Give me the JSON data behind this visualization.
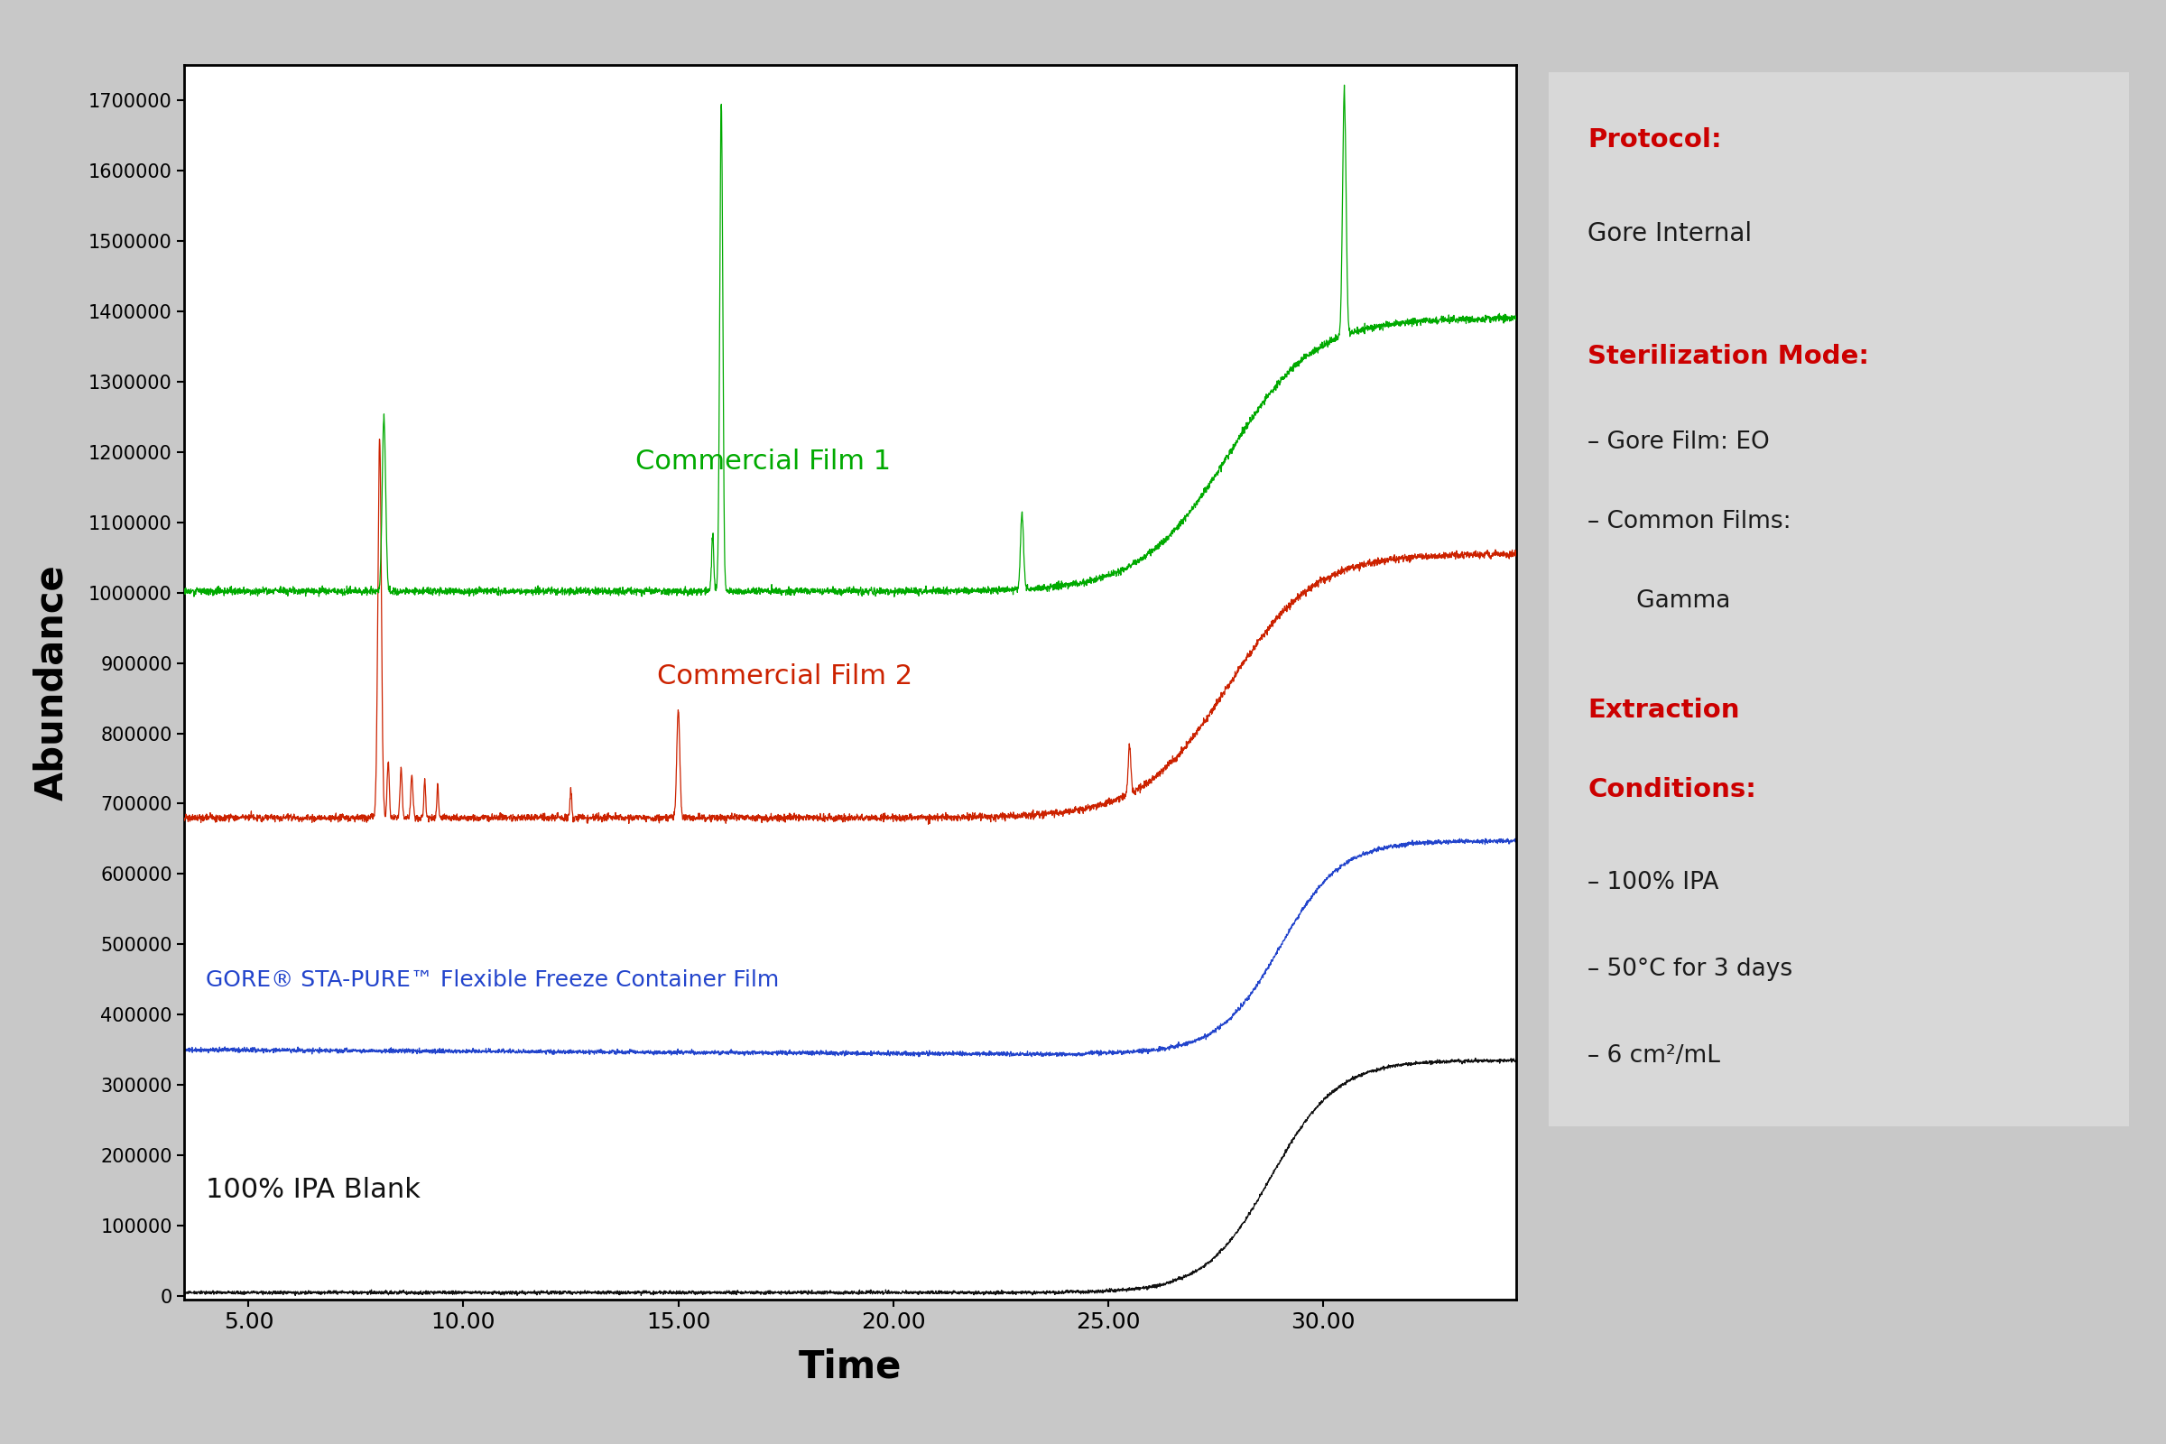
{
  "title": "",
  "xlabel": "Time",
  "ylabel": "Abundance",
  "xlim": [
    3.5,
    34.5
  ],
  "ylim": [
    -5000,
    1750000
  ],
  "yticks": [
    0,
    100000,
    200000,
    300000,
    400000,
    500000,
    600000,
    700000,
    800000,
    900000,
    1000000,
    1100000,
    1200000,
    1300000,
    1400000,
    1500000,
    1600000,
    1700000
  ],
  "xticks": [
    5.0,
    10.0,
    15.0,
    20.0,
    25.0,
    30.0
  ],
  "xtick_labels": [
    "5.00",
    "10.00",
    "15.00",
    "20.00",
    "25.00",
    "30.00"
  ],
  "background_color": "#c8c8c8",
  "plot_bg": "#ffffff",
  "box_bg": "#d8d8d8",
  "line_colors": {
    "commercial1": "#00aa00",
    "commercial2": "#cc2200",
    "gore": "#2244cc",
    "blank": "#111111"
  },
  "line_labels": {
    "commercial1": "Commercial Film 1",
    "commercial2": "Commercial Film 2",
    "gore": "GORE® STA-PURE™ Flexible Freeze Container Film",
    "blank": "100% IPA Blank"
  },
  "annotation_box": {
    "protocol_label": "Protocol:",
    "protocol_value": "Gore Internal",
    "sterilization_label": "Sterilization Mode:",
    "sterilization_line1": "– Gore Film: EO",
    "sterilization_line2": "– Common Films:",
    "sterilization_line3": "   Gamma",
    "extraction_label": "Extraction\nConditions:",
    "extraction_items": [
      "– 100% IPA",
      "– 50°C for 3 days",
      "– 6 cm²/mL"
    ],
    "red_color": "#cc0000",
    "text_color": "#1a1a1a"
  }
}
